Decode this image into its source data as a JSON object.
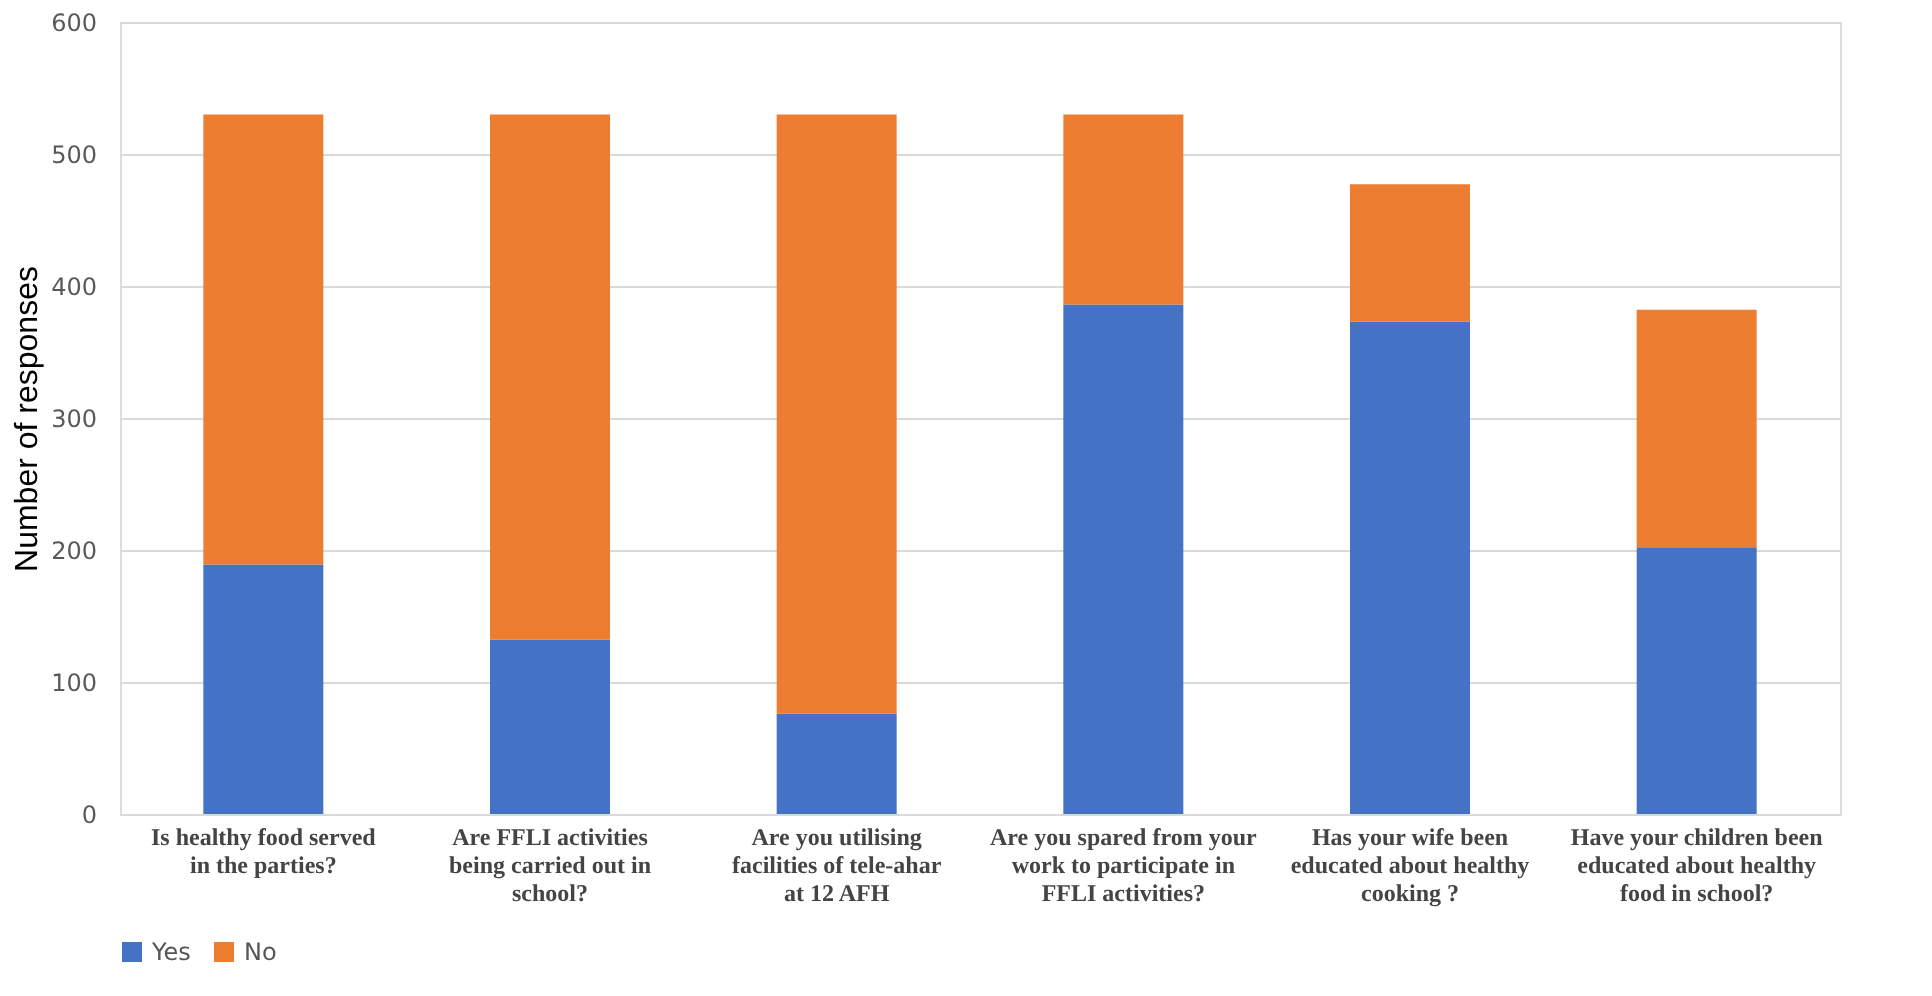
{
  "chart_data": {
    "type": "bar",
    "stacked": true,
    "ylabel": "Number of responses",
    "categories": [
      "Is healthy food served in the parties?",
      "Are FFLI activities being carried out in school?",
      "Are you utilising facilities of tele-ahar at 12 AFH",
      "Are you spared from your work to participate in FFLI activities?",
      "Has your wife been educated about healthy cooking ?",
      "Have your children been educated about healthy food in school?"
    ],
    "series": [
      {
        "name": "Yes",
        "color": "#4472c4",
        "values": [
          189,
          132,
          76,
          386,
          373,
          202
        ]
      },
      {
        "name": "No",
        "color": "#ed7d31",
        "values": [
          341,
          398,
          454,
          144,
          104,
          180
        ]
      }
    ],
    "ylim": [
      0,
      600
    ],
    "yticks": [
      0,
      100,
      200,
      300,
      400,
      500,
      600
    ],
    "grid": "y",
    "legend": "bottom"
  }
}
